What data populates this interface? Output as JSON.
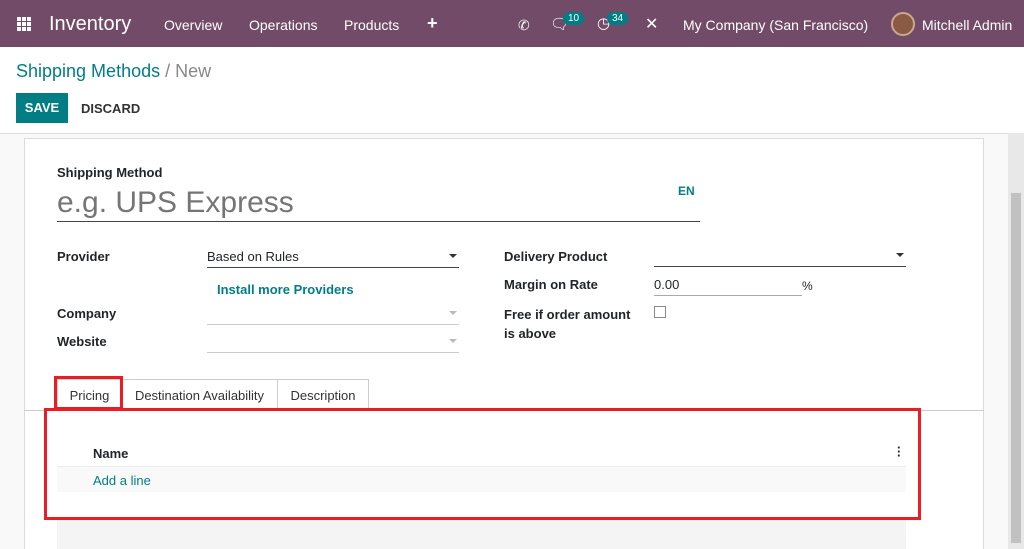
{
  "navbar": {
    "app_title": "Inventory",
    "menu": [
      "Overview",
      "Operations",
      "Products"
    ],
    "plus_icon": "plus-icon",
    "messages_count": "10",
    "activities_count": "34",
    "company": "My Company (San Francisco)",
    "user": "Mitchell Admin",
    "color": "#714B67"
  },
  "breadcrumb": {
    "parent": "Shipping Methods",
    "current": "New"
  },
  "actions": {
    "save": "SAVE",
    "discard": "DISCARD",
    "accent": "#017E84"
  },
  "form": {
    "name_label": "Shipping Method",
    "name_placeholder": "e.g. UPS Express",
    "lang": "EN",
    "provider_label": "Provider",
    "provider_value": "Based on Rules",
    "install_link": "Install more Providers",
    "company_label": "Company",
    "website_label": "Website",
    "delivery_product_label": "Delivery Product",
    "margin_label": "Margin on Rate",
    "margin_value": "0.00",
    "margin_unit": "%",
    "free_label": "Free if order amount is above",
    "free_checked": false
  },
  "tabs": [
    {
      "label": "Pricing",
      "active": true
    },
    {
      "label": "Destination Availability"
    },
    {
      "label": "Description"
    }
  ],
  "table": {
    "columns": [
      "Name"
    ],
    "add_line": "Add a line"
  }
}
